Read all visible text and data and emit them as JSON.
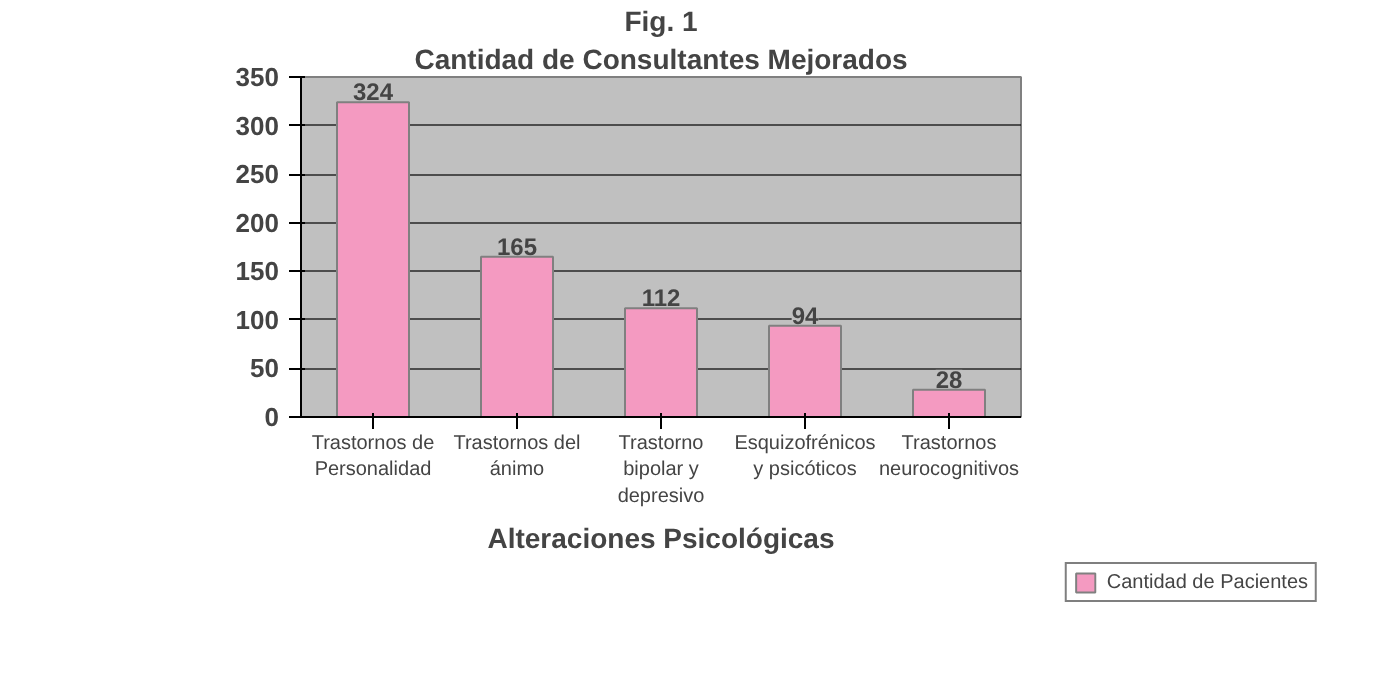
{
  "chart_data": {
    "type": "bar",
    "title": "Fig. 1",
    "subtitle": "Cantidad de Consultantes Mejorados",
    "xlabel": "Alteraciones Psicológicas",
    "categories": [
      "Trastornos de Personalidad",
      "Trastornos del ánimo",
      "Trastorno bipolar y depresivo",
      "Esquizofrénicos y psicóticos",
      "Trastornos neurocognitivos"
    ],
    "series": [
      {
        "name": "Cantidad de Pacientes",
        "color": "#f49ac1",
        "values": [
          324,
          165,
          112,
          94,
          28
        ]
      }
    ],
    "ylim": [
      0,
      350
    ],
    "yticks": [
      0,
      50,
      100,
      150,
      200,
      250,
      300,
      350
    ],
    "grid": "y",
    "data_labels": true,
    "legend": "bottom right"
  }
}
